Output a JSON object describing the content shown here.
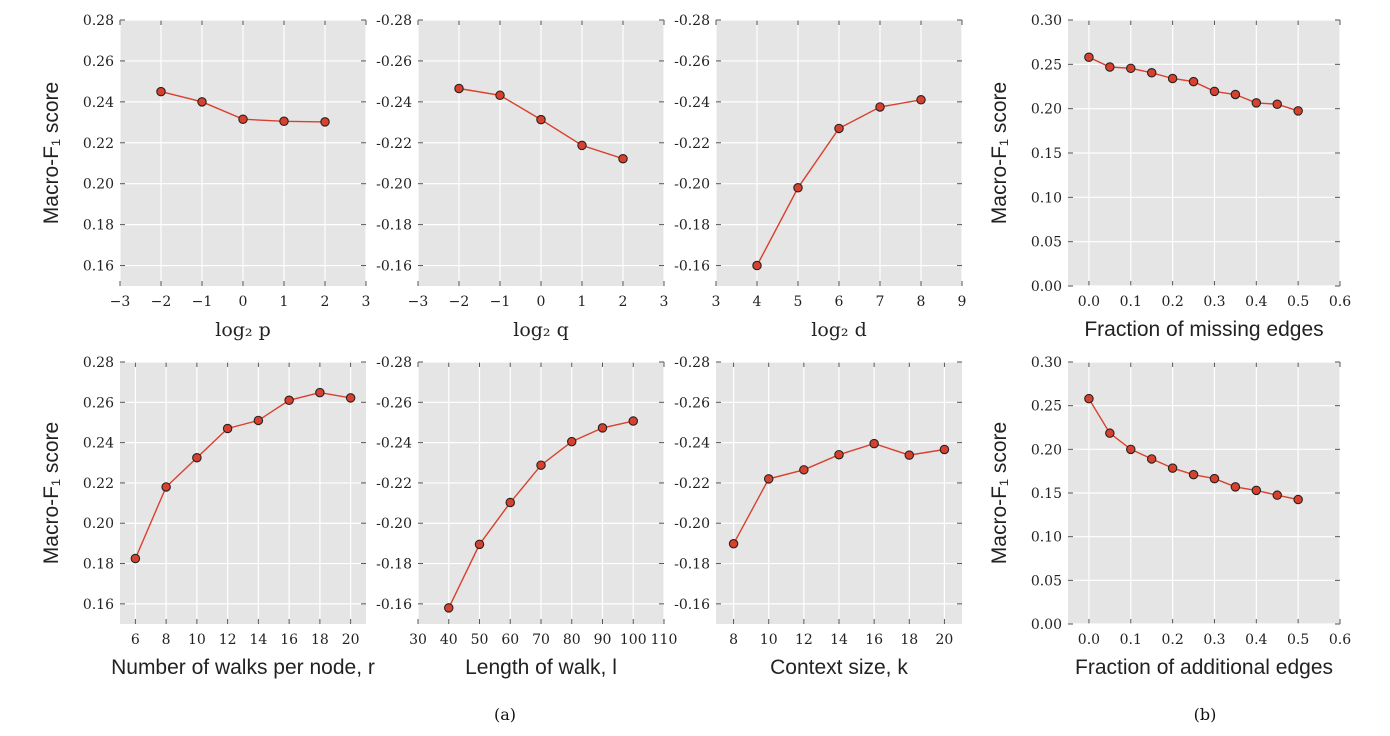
{
  "chart_data": [
    {
      "type": "line",
      "panel": "a-1",
      "x": [
        -2,
        -1,
        0,
        1,
        2
      ],
      "series": [
        {
          "values": [
            0.245,
            0.24,
            0.2315,
            0.2305,
            0.2302
          ]
        }
      ],
      "xlim": [
        -3,
        3
      ],
      "ylim": [
        0.15,
        0.28
      ],
      "xticks": [
        "−3",
        "−2",
        "−1",
        "0",
        "1",
        "2",
        "3"
      ],
      "yticks": [
        "0.16",
        "0.18",
        "0.20",
        "0.22",
        "0.24",
        "0.26",
        "0.28"
      ],
      "xlabel": "log₂ p",
      "ylabel": "Macro-F₁ score",
      "grid": true,
      "title": ""
    },
    {
      "type": "line",
      "panel": "a-2",
      "x": [
        -2,
        -1,
        0,
        1,
        2
      ],
      "series": [
        {
          "values": [
            0.2465,
            0.2432,
            0.2313,
            0.2187,
            0.2122
          ]
        }
      ],
      "xlim": [
        -3,
        3
      ],
      "ylim": [
        0.15,
        0.28
      ],
      "xticks": [
        "−3",
        "−2",
        "−1",
        "0",
        "1",
        "2",
        "3"
      ],
      "yticks": [
        "-0.16",
        "-0.18",
        "-0.20",
        "-0.22",
        "-0.24",
        "-0.26",
        "-0.28"
      ],
      "xlabel": "log₂ q",
      "ylabel": "",
      "grid": true,
      "title": ""
    },
    {
      "type": "line",
      "panel": "a-3",
      "x": [
        4,
        5,
        6,
        7,
        8
      ],
      "series": [
        {
          "values": [
            0.16,
            0.198,
            0.227,
            0.2375,
            0.241
          ]
        }
      ],
      "xlim": [
        3,
        9
      ],
      "ylim": [
        0.15,
        0.28
      ],
      "xticks": [
        "3",
        "4",
        "5",
        "6",
        "7",
        "8",
        "9"
      ],
      "yticks": [
        "-0.16",
        "-0.18",
        "-0.20",
        "-0.22",
        "-0.24",
        "-0.26",
        "-0.28"
      ],
      "xlabel": "log₂ d",
      "ylabel": "",
      "grid": true,
      "title": ""
    },
    {
      "type": "line",
      "panel": "a-4",
      "x": [
        6,
        8,
        10,
        12,
        14,
        16,
        18,
        20
      ],
      "series": [
        {
          "values": [
            0.1825,
            0.218,
            0.2325,
            0.247,
            0.251,
            0.261,
            0.2648,
            0.2622
          ]
        }
      ],
      "xlim": [
        5,
        21
      ],
      "ylim": [
        0.15,
        0.28
      ],
      "xticks": [
        "6",
        "8",
        "10",
        "12",
        "14",
        "16",
        "18",
        "20"
      ],
      "yticks": [
        "0.16",
        "0.18",
        "0.20",
        "0.22",
        "0.24",
        "0.26",
        "0.28"
      ],
      "xlabel": "Number of walks per node, r",
      "ylabel": "Macro-F₁ score",
      "grid": true,
      "title": ""
    },
    {
      "type": "line",
      "panel": "a-5",
      "x": [
        40,
        50,
        60,
        70,
        80,
        90,
        100
      ],
      "series": [
        {
          "values": [
            0.158,
            0.1895,
            0.2103,
            0.2288,
            0.2405,
            0.2473,
            0.2507
          ]
        }
      ],
      "xlim": [
        30,
        110
      ],
      "ylim": [
        0.15,
        0.28
      ],
      "xticks": [
        "30",
        "40",
        "50",
        "60",
        "70",
        "80",
        "90",
        "100",
        "110"
      ],
      "yticks": [
        "-0.16",
        "-0.18",
        "-0.20",
        "-0.22",
        "-0.24",
        "-0.26",
        "-0.28"
      ],
      "xlabel": "Length of walk, l",
      "ylabel": "",
      "grid": true,
      "title": ""
    },
    {
      "type": "line",
      "panel": "a-6",
      "x": [
        8,
        10,
        12,
        14,
        16,
        18,
        20
      ],
      "series": [
        {
          "values": [
            0.1898,
            0.222,
            0.2265,
            0.234,
            0.2395,
            0.2338,
            0.2366
          ]
        }
      ],
      "xlim": [
        7,
        21
      ],
      "ylim": [
        0.15,
        0.28
      ],
      "xticks": [
        "8",
        "10",
        "12",
        "14",
        "16",
        "18",
        "20"
      ],
      "yticks": [
        "-0.16",
        "-0.18",
        "-0.20",
        "-0.22",
        "-0.24",
        "-0.26",
        "-0.28"
      ],
      "xlabel": "Context size, k",
      "ylabel": "",
      "grid": true,
      "title": ""
    },
    {
      "type": "line",
      "panel": "b-1",
      "x": [
        0.0,
        0.05,
        0.1,
        0.15,
        0.2,
        0.25,
        0.3,
        0.35,
        0.4,
        0.45,
        0.5
      ],
      "series": [
        {
          "values": [
            0.258,
            0.247,
            0.2455,
            0.2405,
            0.234,
            0.2305,
            0.2195,
            0.216,
            0.2065,
            0.205,
            0.1975
          ]
        }
      ],
      "xlim": [
        -0.05,
        0.6
      ],
      "ylim": [
        0.0,
        0.3
      ],
      "xticks": [
        "0.0",
        "0.1",
        "0.2",
        "0.3",
        "0.4",
        "0.5",
        "0.6"
      ],
      "yticks": [
        "0.00",
        "0.05",
        "0.10",
        "0.15",
        "0.20",
        "0.25",
        "0.30"
      ],
      "xlabel": "Fraction of missing edges",
      "ylabel": "Macro-F₁ score",
      "grid": true,
      "title": ""
    },
    {
      "type": "line",
      "panel": "b-2",
      "x": [
        0.0,
        0.05,
        0.1,
        0.15,
        0.2,
        0.25,
        0.3,
        0.35,
        0.4,
        0.45,
        0.5
      ],
      "series": [
        {
          "values": [
            0.258,
            0.2185,
            0.2,
            0.189,
            0.1785,
            0.171,
            0.1665,
            0.157,
            0.153,
            0.1475,
            0.1425
          ]
        }
      ],
      "xlim": [
        -0.05,
        0.6
      ],
      "ylim": [
        0.0,
        0.3
      ],
      "xticks": [
        "0.0",
        "0.1",
        "0.2",
        "0.3",
        "0.4",
        "0.5",
        "0.6"
      ],
      "yticks": [
        "0.00",
        "0.05",
        "0.10",
        "0.15",
        "0.20",
        "0.25",
        "0.30"
      ],
      "xlabel": "Fraction of additional edges",
      "ylabel": "Macro-F₁ score",
      "grid": true,
      "title": ""
    }
  ],
  "captions": {
    "a": "(a)",
    "b": "(b)"
  }
}
